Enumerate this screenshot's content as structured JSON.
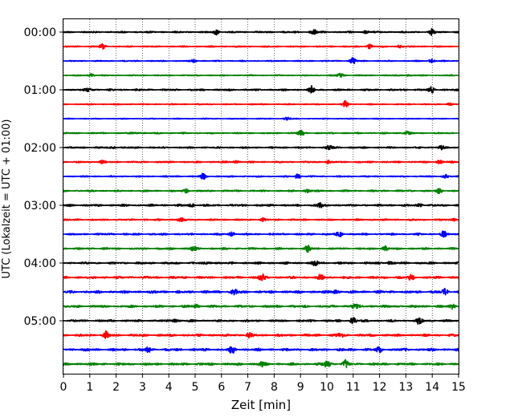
{
  "chart_data": {
    "type": "line",
    "title": "",
    "xlabel": "Zeit  [min]",
    "ylabel": "UTC (Lokalzeit = UTC + 01:00)",
    "xlim": [
      0,
      15
    ],
    "x_ticks": [
      "0",
      "1",
      "2",
      "3",
      "4",
      "5",
      "6",
      "7",
      "8",
      "9",
      "10",
      "11",
      "12",
      "13",
      "14",
      "15"
    ],
    "y_ticks": [
      "00:00",
      "01:00",
      "02:00",
      "03:00",
      "04:00",
      "05:00"
    ],
    "grid": {
      "x": true,
      "y": false
    },
    "trace_interval_min": 15,
    "trace_colors": [
      "#000000",
      "#ff0000",
      "#0000ff",
      "#008000"
    ],
    "traces": [
      {
        "start": "00:00",
        "amplitude": 0.35,
        "events": [
          {
            "t": 5.8,
            "a": 1.6
          },
          {
            "t": 9.5,
            "a": 1.8
          },
          {
            "t": 11.5,
            "a": 1.2
          },
          {
            "t": 14.0,
            "a": 1.2
          }
        ]
      },
      {
        "start": "00:15",
        "amplitude": 0.3,
        "events": [
          {
            "t": 1.5,
            "a": 1.3
          },
          {
            "t": 11.6,
            "a": 1.6
          },
          {
            "t": 12.8,
            "a": 1.1
          }
        ]
      },
      {
        "start": "00:30",
        "amplitude": 0.25,
        "events": [
          {
            "t": 5.0,
            "a": 1.1
          },
          {
            "t": 11.0,
            "a": 1.8
          },
          {
            "t": 14.0,
            "a": 1.4
          }
        ]
      },
      {
        "start": "00:45",
        "amplitude": 0.25,
        "events": [
          {
            "t": 1.1,
            "a": 1.4
          },
          {
            "t": 10.5,
            "a": 1.2
          },
          {
            "t": 13.0,
            "a": 1.0
          }
        ]
      },
      {
        "start": "01:00",
        "amplitude": 0.4,
        "events": [
          {
            "t": 1.0,
            "a": 1.3
          },
          {
            "t": 9.4,
            "a": 1.5
          },
          {
            "t": 14.0,
            "a": 1.3
          }
        ]
      },
      {
        "start": "01:15",
        "amplitude": 0.25,
        "events": [
          {
            "t": 10.7,
            "a": 1.2
          },
          {
            "t": 14.6,
            "a": 1.0
          }
        ]
      },
      {
        "start": "01:30",
        "amplitude": 0.2,
        "events": [
          {
            "t": 8.5,
            "a": 1.0
          }
        ]
      },
      {
        "start": "01:45",
        "amplitude": 0.3,
        "events": [
          {
            "t": 2.8,
            "a": 1.2
          },
          {
            "t": 9.0,
            "a": 1.3
          },
          {
            "t": 13.0,
            "a": 1.2
          }
        ]
      },
      {
        "start": "02:00",
        "amplitude": 0.35,
        "events": [
          {
            "t": 2.0,
            "a": 1.0
          },
          {
            "t": 10.1,
            "a": 1.3
          },
          {
            "t": 14.3,
            "a": 1.2
          }
        ]
      },
      {
        "start": "02:15",
        "amplitude": 0.35,
        "events": [
          {
            "t": 1.4,
            "a": 1.4
          },
          {
            "t": 6.5,
            "a": 1.5
          },
          {
            "t": 10.0,
            "a": 1.3
          },
          {
            "t": 14.3,
            "a": 1.3
          }
        ]
      },
      {
        "start": "02:30",
        "amplitude": 0.3,
        "events": [
          {
            "t": 5.3,
            "a": 1.3
          },
          {
            "t": 8.9,
            "a": 1.6
          },
          {
            "t": 14.5,
            "a": 1.2
          }
        ]
      },
      {
        "start": "02:45",
        "amplitude": 0.35,
        "events": [
          {
            "t": 4.7,
            "a": 1.4
          },
          {
            "t": 9.3,
            "a": 1.6
          },
          {
            "t": 14.3,
            "a": 1.5
          }
        ]
      },
      {
        "start": "03:00",
        "amplitude": 0.45,
        "events": [
          {
            "t": 4.9,
            "a": 1.4
          },
          {
            "t": 9.7,
            "a": 1.6
          },
          {
            "t": 13.6,
            "a": 1.2
          }
        ]
      },
      {
        "start": "03:15",
        "amplitude": 0.35,
        "events": [
          {
            "t": 4.4,
            "a": 1.3
          },
          {
            "t": 7.5,
            "a": 1.3
          },
          {
            "t": 14.9,
            "a": 1.8
          }
        ]
      },
      {
        "start": "03:30",
        "amplitude": 0.4,
        "events": [
          {
            "t": 6.4,
            "a": 1.4
          },
          {
            "t": 10.5,
            "a": 1.4
          },
          {
            "t": 14.4,
            "a": 1.4
          }
        ]
      },
      {
        "start": "03:45",
        "amplitude": 0.4,
        "events": [
          {
            "t": 4.9,
            "a": 1.4
          },
          {
            "t": 9.3,
            "a": 1.6
          },
          {
            "t": 12.2,
            "a": 1.4
          }
        ]
      },
      {
        "start": "04:00",
        "amplitude": 0.45,
        "events": [
          {
            "t": 5.6,
            "a": 1.2
          },
          {
            "t": 9.6,
            "a": 1.4
          },
          {
            "t": 12.3,
            "a": 1.3
          }
        ]
      },
      {
        "start": "04:15",
        "amplitude": 0.5,
        "events": [
          {
            "t": 7.5,
            "a": 1.7
          },
          {
            "t": 9.8,
            "a": 1.3
          },
          {
            "t": 13.2,
            "a": 1.2
          }
        ]
      },
      {
        "start": "04:30",
        "amplitude": 0.55,
        "events": [
          {
            "t": 6.5,
            "a": 1.2
          },
          {
            "t": 10.3,
            "a": 1.5
          },
          {
            "t": 14.5,
            "a": 1.3
          }
        ]
      },
      {
        "start": "04:45",
        "amplitude": 0.5,
        "events": [
          {
            "t": 5.0,
            "a": 1.2
          },
          {
            "t": 11.0,
            "a": 1.6
          },
          {
            "t": 14.8,
            "a": 1.3
          }
        ]
      },
      {
        "start": "05:00",
        "amplitude": 0.45,
        "events": [
          {
            "t": 4.2,
            "a": 1.8
          },
          {
            "t": 11.0,
            "a": 2.0
          },
          {
            "t": 13.5,
            "a": 1.2
          }
        ]
      },
      {
        "start": "05:15",
        "amplitude": 0.5,
        "events": [
          {
            "t": 1.6,
            "a": 1.6
          },
          {
            "t": 7.0,
            "a": 1.4
          },
          {
            "t": 10.5,
            "a": 1.2
          }
        ]
      },
      {
        "start": "05:30",
        "amplitude": 0.55,
        "events": [
          {
            "t": 3.2,
            "a": 1.3
          },
          {
            "t": 6.4,
            "a": 1.3
          },
          {
            "t": 12.0,
            "a": 1.2
          }
        ]
      },
      {
        "start": "05:45",
        "amplitude": 0.5,
        "events": [
          {
            "t": 10.0,
            "a": 2.6
          },
          {
            "t": 10.7,
            "a": 1.6
          },
          {
            "t": 7.5,
            "a": 1.2
          }
        ]
      }
    ]
  }
}
